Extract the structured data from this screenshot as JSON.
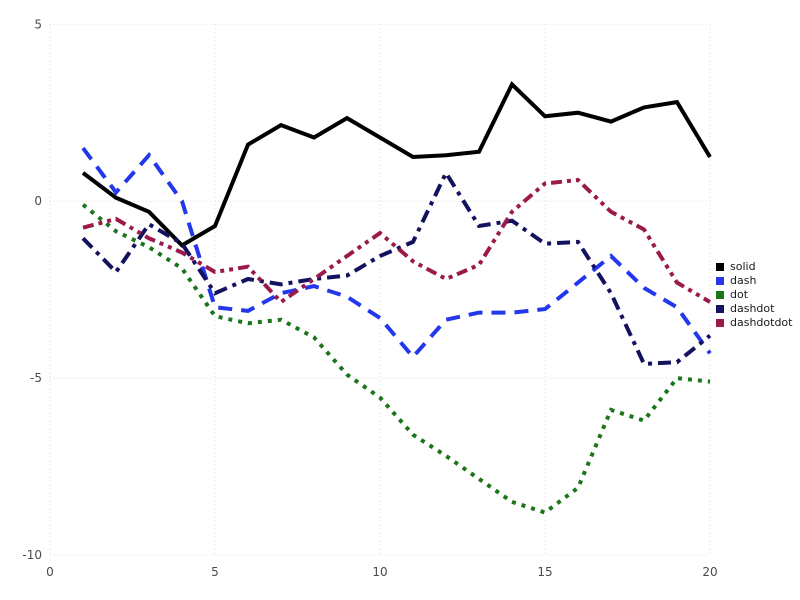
{
  "chart_data": {
    "type": "line",
    "title": "",
    "xlabel": "",
    "ylabel": "",
    "grid": true,
    "legend_position": "right",
    "xlim": [
      0,
      20.3
    ],
    "ylim": [
      -10.4,
      5.4
    ],
    "x_ticks": [
      "0",
      "5",
      "10",
      "15",
      "20"
    ],
    "x_tick_values": [
      0,
      5,
      10,
      15,
      20
    ],
    "y_ticks": [
      "5",
      "0",
      "-5",
      "-10"
    ],
    "y_tick_values": [
      5,
      0,
      -5,
      -10
    ],
    "x": [
      1,
      2,
      3,
      4,
      5,
      6,
      7,
      8,
      9,
      10,
      11,
      12,
      13,
      14,
      15,
      16,
      17,
      18,
      19,
      20
    ],
    "series": [
      {
        "name": "solid",
        "color": "#000000",
        "dash": "solid",
        "values": [
          0.8,
          0.1,
          -0.3,
          -1.25,
          -0.7,
          1.6,
          2.15,
          1.8,
          2.35,
          1.8,
          1.25,
          1.3,
          1.4,
          3.3,
          2.4,
          2.5,
          2.25,
          2.65,
          2.8,
          1.25
        ]
      },
      {
        "name": "dash",
        "color": "#2338ec",
        "dash": "dash",
        "values": [
          1.5,
          0.25,
          1.3,
          0.0,
          -3.0,
          -3.1,
          -2.6,
          -2.4,
          -2.7,
          -3.3,
          -4.4,
          -3.35,
          -3.15,
          -3.15,
          -3.05,
          -2.3,
          -1.55,
          -2.45,
          -3.0,
          -4.3
        ]
      },
      {
        "name": "dot",
        "color": "#1b751b",
        "dash": "dot",
        "values": [
          -0.1,
          -0.85,
          -1.3,
          -1.9,
          -3.25,
          -3.45,
          -3.35,
          -3.85,
          -4.9,
          -5.55,
          -6.6,
          -7.2,
          -7.85,
          -8.5,
          -8.8,
          -8.1,
          -5.9,
          -6.2,
          -5.0,
          -5.1
        ]
      },
      {
        "name": "dashdot",
        "color": "#12125e",
        "dash": "dashdot",
        "values": [
          -1.05,
          -2.0,
          -0.65,
          -1.2,
          -2.6,
          -2.2,
          -2.35,
          -2.2,
          -2.1,
          -1.55,
          -1.15,
          0.8,
          -0.7,
          -0.55,
          -1.2,
          -1.15,
          -2.6,
          -4.6,
          -4.55,
          -3.8
        ]
      },
      {
        "name": "dashdotdot",
        "color": "#9b1a4b",
        "dash": "dashdotdot",
        "values": [
          -0.75,
          -0.5,
          -1.05,
          -1.45,
          -2.0,
          -1.85,
          -2.85,
          -2.2,
          -1.55,
          -0.9,
          -1.7,
          -2.2,
          -1.8,
          -0.3,
          0.5,
          0.6,
          -0.3,
          -0.8,
          -2.3,
          -2.85
        ]
      }
    ],
    "grid_color": "#d9d9d9"
  },
  "legend": {
    "items": [
      "solid",
      "dash",
      "dot",
      "dashdot",
      "dashdotdot"
    ]
  }
}
